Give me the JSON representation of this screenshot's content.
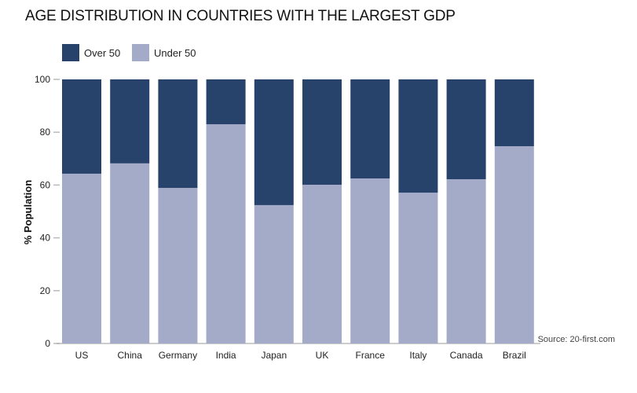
{
  "chart_data": {
    "type": "bar",
    "stacked": true,
    "title": "AGE DISTRIBUTION IN COUNTRIES WITH THE LARGEST GDP",
    "ylabel": "% Population",
    "xlabel": "",
    "ylim": [
      0,
      100
    ],
    "yticks": [
      0,
      20,
      40,
      60,
      80,
      100
    ],
    "categories": [
      "US",
      "China",
      "Germany",
      "India",
      "Japan",
      "UK",
      "France",
      "Italy",
      "Canada",
      "Brazil"
    ],
    "series": [
      {
        "name": "Under 50",
        "color": "#a4abc8",
        "values": [
          64.3,
          68.2,
          58.9,
          83.0,
          52.4,
          60.1,
          62.5,
          57.1,
          62.2,
          74.7
        ]
      },
      {
        "name": "Over 50",
        "color": "#27426b",
        "values": [
          35.7,
          31.8,
          41.1,
          17.0,
          47.6,
          39.9,
          37.5,
          42.9,
          37.8,
          25.3
        ]
      }
    ],
    "legend": {
      "position": "top-left",
      "items": [
        "Over 50",
        "Under 50"
      ]
    },
    "grid": false,
    "source": "Source: 20-first.com"
  }
}
